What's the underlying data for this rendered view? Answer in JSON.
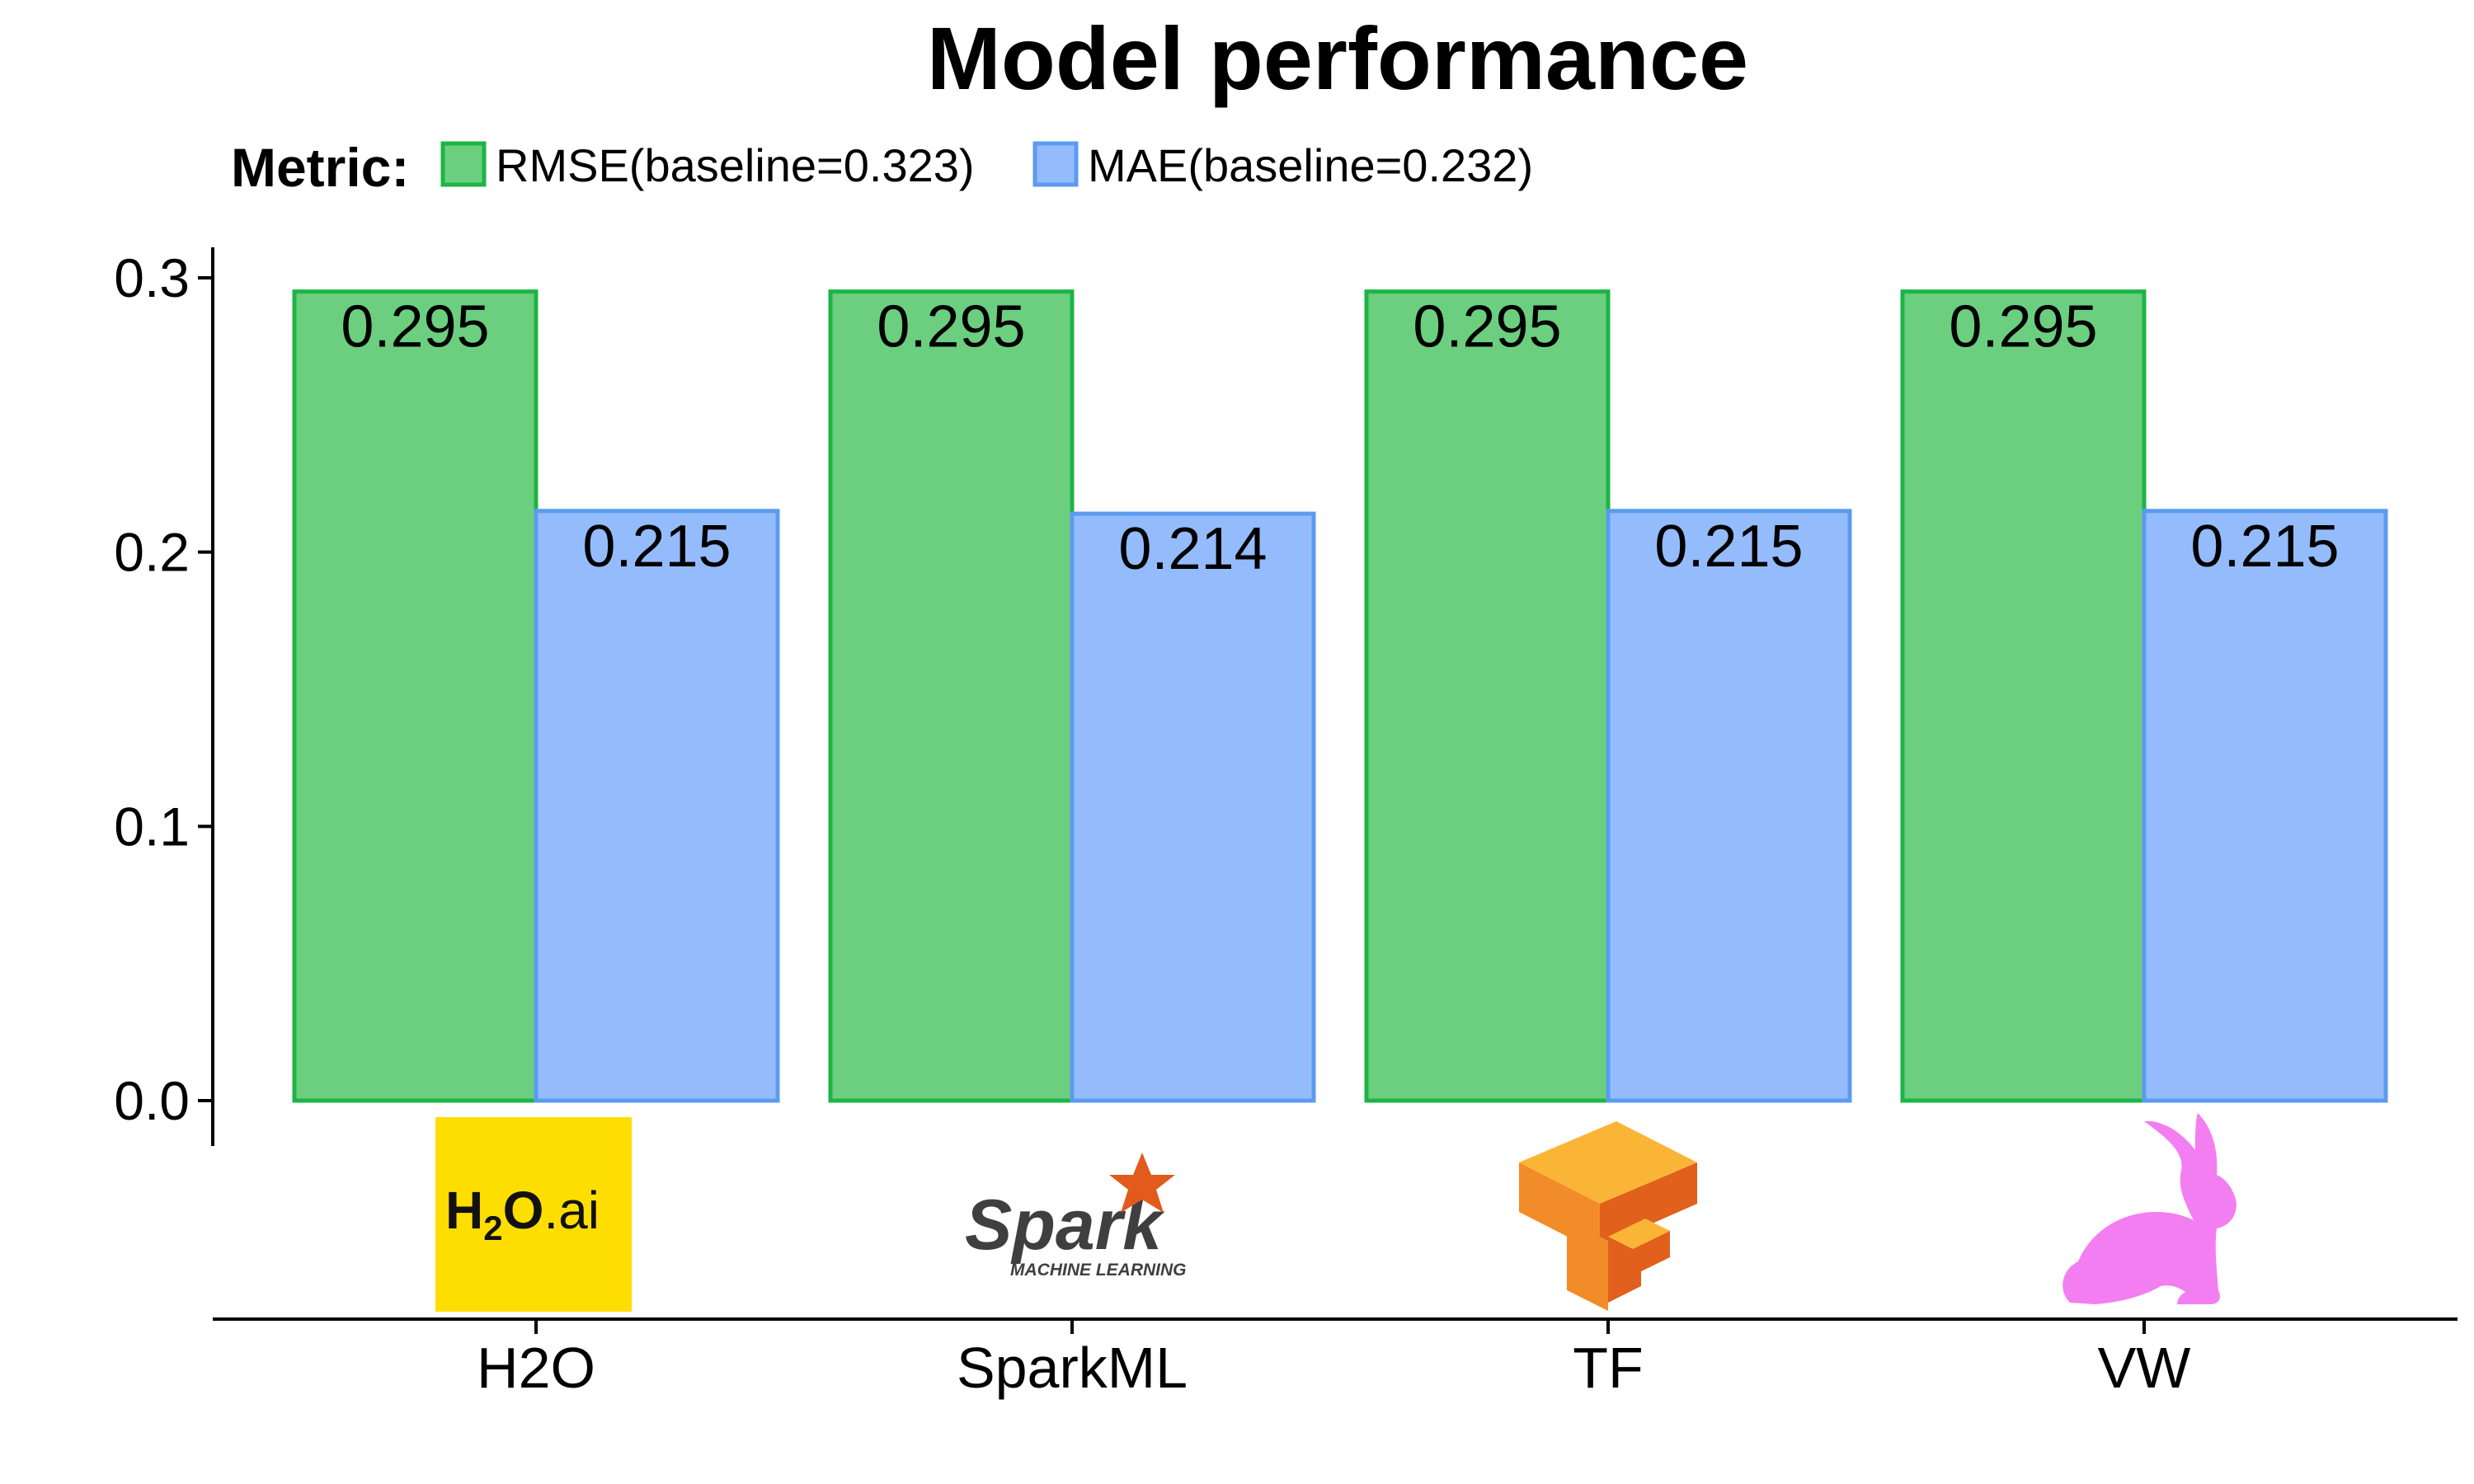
{
  "colors": {
    "rmse_fill": "#6bcf7f",
    "rmse_stroke": "#1db446",
    "mae_fill": "#94bcfc",
    "mae_stroke": "#5b9bf0",
    "axis": "#000000",
    "h2o_bg": "#fede00",
    "spark_text": "#3f3f3f",
    "spark_star": "#e25a1c",
    "tf_orange": "#f28c28",
    "tf_light": "#fbb536",
    "tf_dark": "#e0601c",
    "rabbit": "#f37ef2"
  },
  "logos": {
    "h2o": {
      "icon": "h2o-ai-logo",
      "text": "H2O.ai"
    },
    "spark": {
      "icon": "spark-ml-logo",
      "text": "Spark",
      "subtext": "MACHINE LEARNING"
    },
    "tf": {
      "icon": "tensorflow-logo"
    },
    "vw": {
      "icon": "rabbit-logo"
    }
  },
  "chart_data": {
    "type": "bar",
    "title": "Model performance",
    "xlabel": "",
    "ylabel": "",
    "legend": {
      "title": "Metric:",
      "placement": "top-left"
    },
    "categories": [
      "H2O",
      "SparkML",
      "TF",
      "VW"
    ],
    "series": [
      {
        "name": "RMSE(baseline=0.323)",
        "values": [
          0.295,
          0.295,
          0.295,
          0.295
        ],
        "labels": [
          "0.295",
          "0.295",
          "0.295",
          "0.295"
        ]
      },
      {
        "name": "MAE(baseline=0.232)",
        "values": [
          0.215,
          0.214,
          0.215,
          0.215
        ],
        "labels": [
          "0.215",
          "0.214",
          "0.215",
          "0.215"
        ]
      }
    ],
    "ylim": [
      0,
      0.31
    ],
    "yticks": [
      0.0,
      0.1,
      0.2,
      0.3
    ],
    "ytick_labels": [
      "0.0",
      "0.1",
      "0.2",
      "0.3"
    ],
    "grid": false
  }
}
